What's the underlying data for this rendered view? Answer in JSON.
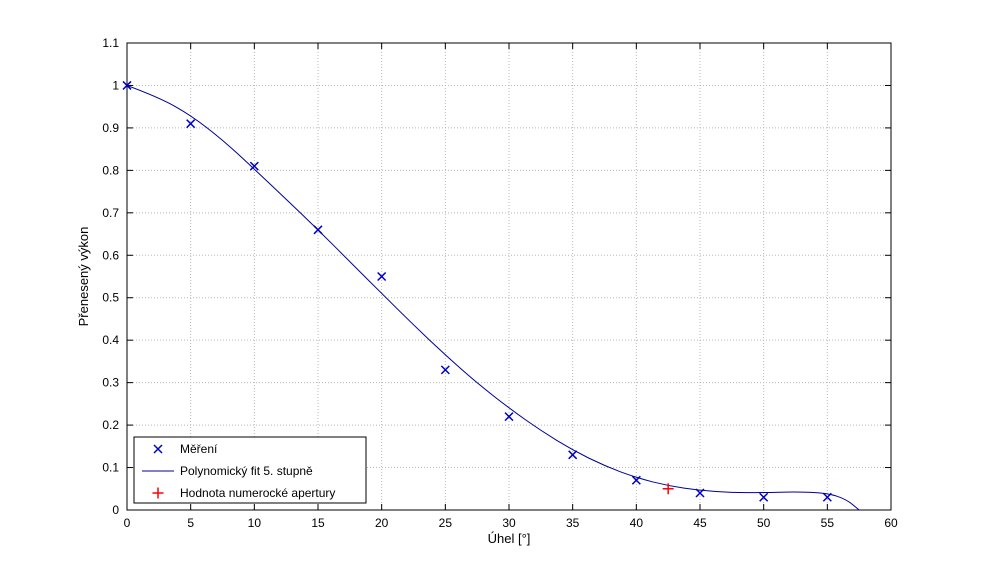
{
  "figure": {
    "background": "#ffffff",
    "plot_background": "#ffffff",
    "grid_color": "#b8b8b8",
    "axes_color": "#000000"
  },
  "chart_data": {
    "type": "scatter",
    "title": "",
    "xlabel": "Úhel [°]",
    "ylabel": "Přenesený výkon",
    "xlim": [
      0,
      60
    ],
    "ylim": [
      0,
      1.1
    ],
    "xticks": [
      0,
      5,
      10,
      15,
      20,
      25,
      30,
      35,
      40,
      45,
      50,
      55,
      60
    ],
    "xtick_labels": [
      "0",
      "5",
      "10",
      "15",
      "20",
      "25",
      "30",
      "35",
      "40",
      "45",
      "50",
      "55",
      "60"
    ],
    "yticks": [
      0,
      0.1,
      0.2,
      0.3,
      0.4,
      0.5,
      0.6,
      0.7,
      0.8,
      0.9,
      1,
      1.1
    ],
    "ytick_labels": [
      "0",
      "0.1",
      "0.2",
      "0.3",
      "0.4",
      "0.5",
      "0.6",
      "0.7",
      "0.8",
      "0.9",
      "1",
      "1.1"
    ],
    "grid": true,
    "series": [
      {
        "name": "Měření",
        "type": "scatter",
        "marker": "x",
        "color": "#0000cc",
        "x": [
          0,
          5,
          10,
          15,
          20,
          25,
          30,
          35,
          40,
          45,
          50,
          55
        ],
        "y": [
          1.0,
          0.91,
          0.81,
          0.66,
          0.55,
          0.33,
          0.22,
          0.13,
          0.07,
          0.04,
          0.03,
          0.03
        ]
      },
      {
        "name": "Polynomický fit 5. stupně",
        "type": "line",
        "marker": "",
        "color": "#000099",
        "x": [
          0,
          2.5,
          5,
          7.5,
          10,
          12.5,
          15,
          17.5,
          20,
          22.5,
          25,
          27.5,
          30,
          32.5,
          35,
          37.5,
          40,
          42.5,
          45,
          47.5,
          50,
          52.5,
          55,
          56.5,
          57.5
        ],
        "y": [
          1.0,
          0.972,
          0.93,
          0.872,
          0.803,
          0.732,
          0.66,
          0.585,
          0.51,
          0.436,
          0.365,
          0.299,
          0.24,
          0.187,
          0.141,
          0.104,
          0.076,
          0.057,
          0.046,
          0.041,
          0.041,
          0.043,
          0.04,
          0.025,
          0.0
        ]
      },
      {
        "name": "Hodnota numerocké apertury",
        "type": "scatter",
        "marker": "+",
        "color": "#ff0000",
        "x": [
          42.5
        ],
        "y": [
          0.05
        ]
      }
    ],
    "legend": {
      "position": "bottom-left",
      "entries": [
        "Měření",
        "Polynomický fit 5. stupně",
        "Hodnota numerocké apertury"
      ]
    }
  }
}
